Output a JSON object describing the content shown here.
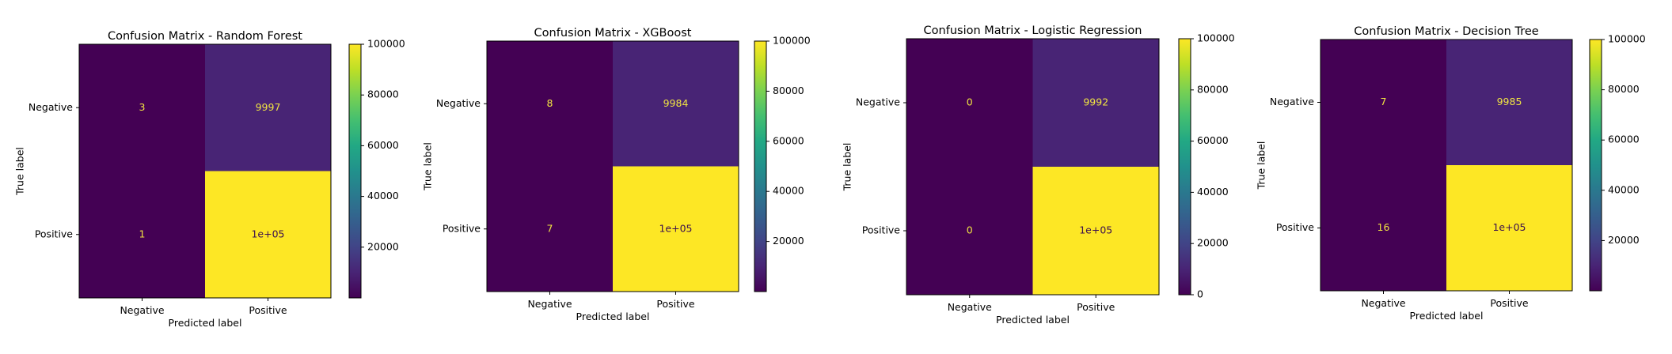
{
  "chart_data": [
    {
      "type": "heatmap",
      "title": "Confusion Matrix - Random Forest",
      "xlabel": "Predicted label",
      "ylabel": "True label",
      "x_categories": [
        "Negative",
        "Positive"
      ],
      "y_categories": [
        "Negative",
        "Positive"
      ],
      "values": [
        [
          3,
          9997
        ],
        [
          1,
          100000
        ]
      ],
      "cell_labels": [
        [
          "3",
          "9997"
        ],
        [
          "1",
          "1e+05"
        ]
      ],
      "colormap": "viridis",
      "colorbar_range": [
        1,
        100000
      ],
      "colorbar_ticks": [
        20000,
        40000,
        60000,
        80000,
        100000
      ],
      "colorbar_tick_labels": [
        "20000",
        "40000",
        "60000",
        "80000",
        "100000"
      ]
    },
    {
      "type": "heatmap",
      "title": "Confusion Matrix - XGBoost",
      "xlabel": "Predicted label",
      "ylabel": "True label",
      "x_categories": [
        "Negative",
        "Positive"
      ],
      "y_categories": [
        "Negative",
        "Positive"
      ],
      "values": [
        [
          8,
          9984
        ],
        [
          7,
          100000
        ]
      ],
      "cell_labels": [
        [
          "8",
          "9984"
        ],
        [
          "7",
          "1e+05"
        ]
      ],
      "colormap": "viridis",
      "colorbar_range": [
        7,
        100000
      ],
      "colorbar_ticks": [
        20000,
        40000,
        60000,
        80000,
        100000
      ],
      "colorbar_tick_labels": [
        "20000",
        "40000",
        "60000",
        "80000",
        "100000"
      ]
    },
    {
      "type": "heatmap",
      "title": "Confusion Matrix - Logistic Regression",
      "xlabel": "Predicted label",
      "ylabel": "True label",
      "x_categories": [
        "Negative",
        "Positive"
      ],
      "y_categories": [
        "Negative",
        "Positive"
      ],
      "values": [
        [
          0,
          9992
        ],
        [
          0,
          100000
        ]
      ],
      "cell_labels": [
        [
          "0",
          "9992"
        ],
        [
          "0",
          "1e+05"
        ]
      ],
      "colormap": "viridis",
      "colorbar_range": [
        0,
        100000
      ],
      "colorbar_ticks": [
        0,
        20000,
        40000,
        60000,
        80000,
        100000
      ],
      "colorbar_tick_labels": [
        "0",
        "20000",
        "40000",
        "60000",
        "80000",
        "100000"
      ]
    },
    {
      "type": "heatmap",
      "title": "Confusion Matrix - Decision Tree",
      "xlabel": "Predicted label",
      "ylabel": "True label",
      "x_categories": [
        "Negative",
        "Positive"
      ],
      "y_categories": [
        "Negative",
        "Positive"
      ],
      "values": [
        [
          7,
          9985
        ],
        [
          16,
          100000
        ]
      ],
      "cell_labels": [
        [
          "7",
          "9985"
        ],
        [
          "16",
          "1e+05"
        ]
      ],
      "colormap": "viridis",
      "colorbar_range": [
        7,
        100000
      ],
      "colorbar_ticks": [
        20000,
        40000,
        60000,
        80000,
        100000
      ],
      "colorbar_tick_labels": [
        "20000",
        "40000",
        "60000",
        "80000",
        "100000"
      ]
    }
  ]
}
